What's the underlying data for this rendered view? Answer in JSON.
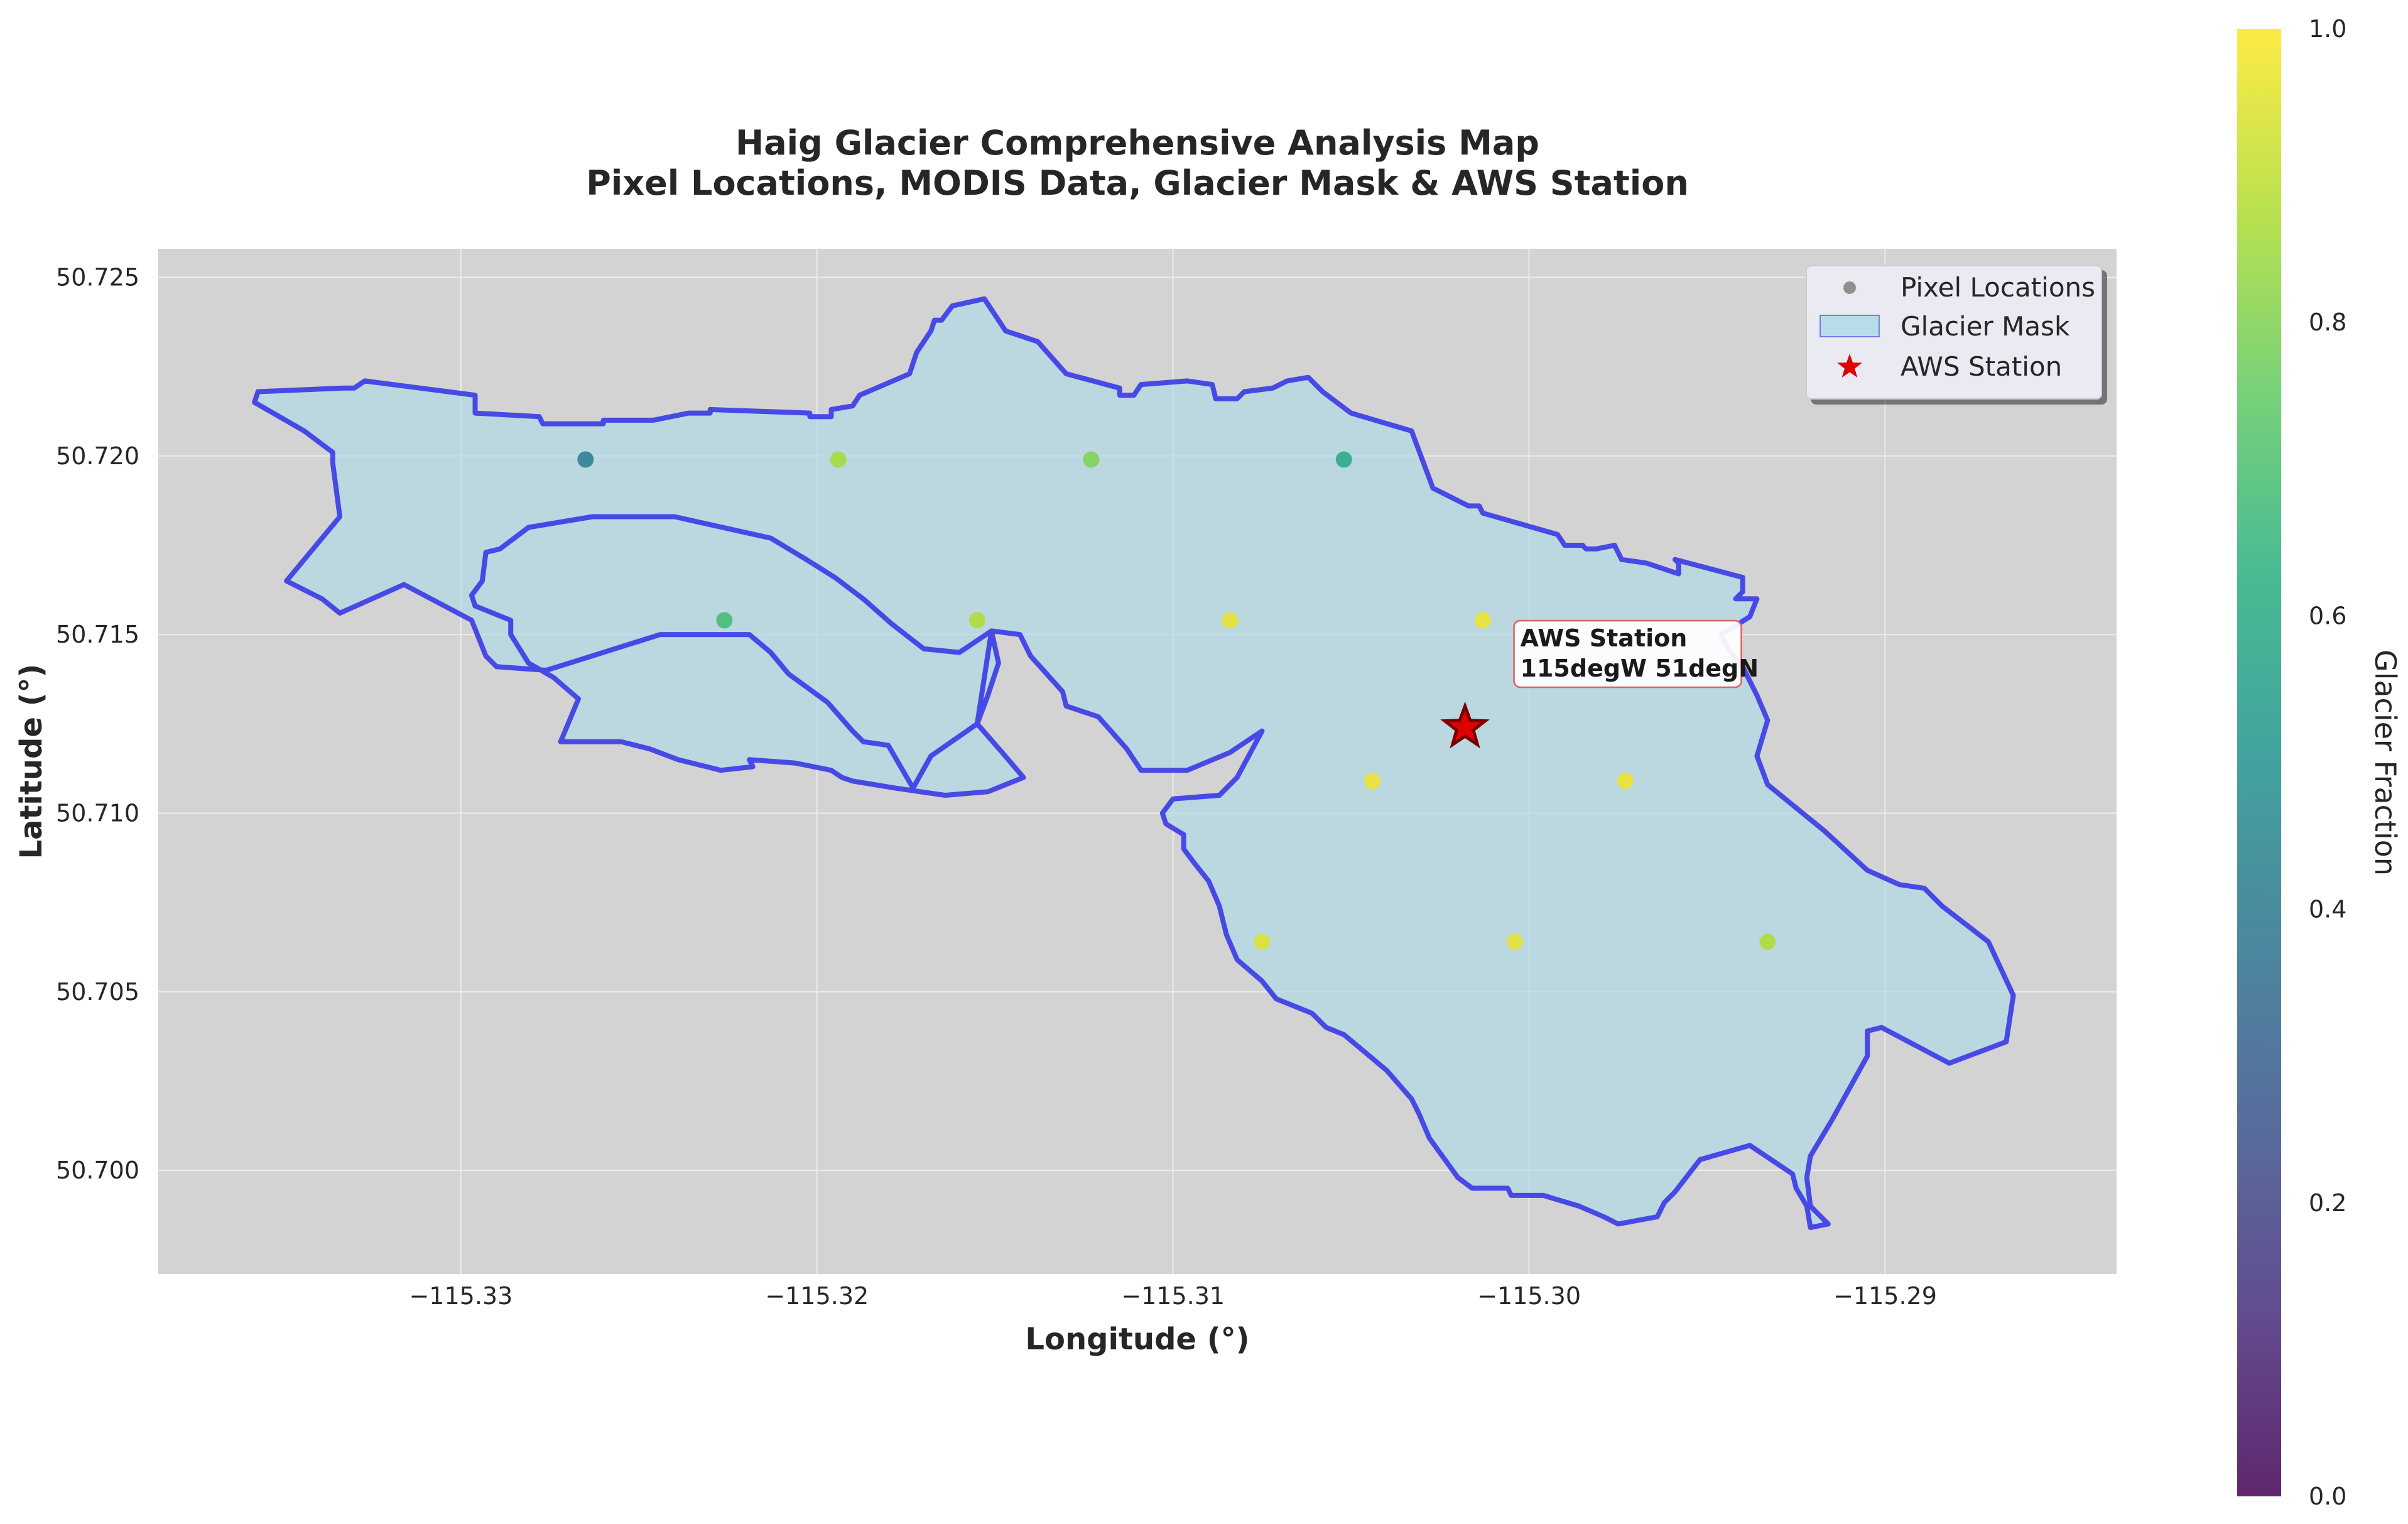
{
  "chart_data": {
    "type": "scatter",
    "title": [
      "Haig Glacier Comprehensive Analysis Map",
      "Pixel Locations, MODIS Data, Glacier Mask & AWS Station"
    ],
    "xlabel": "Longitude (°)",
    "ylabel": "Latitude (°)",
    "xlim": [
      -115.3385,
      -115.2835
    ],
    "ylim": [
      50.6971,
      50.7258
    ],
    "xticks": [
      -115.33,
      -115.32,
      -115.31,
      -115.3,
      -115.29
    ],
    "xtick_labels": [
      "−115.33",
      "−115.32",
      "−115.31",
      "−115.30",
      "−115.29"
    ],
    "yticks": [
      50.7,
      50.705,
      50.71,
      50.715,
      50.72,
      50.725
    ],
    "ytick_labels": [
      "50.700",
      "50.705",
      "50.710",
      "50.715",
      "50.720",
      "50.725"
    ],
    "grid": true,
    "legend": {
      "placement": "top-right",
      "entries": [
        "Pixel Locations",
        "Glacier Mask",
        "AWS Station"
      ]
    },
    "colorbar": {
      "label": "Glacier Fraction",
      "colormap": "viridis",
      "range": [
        0.0,
        1.0
      ],
      "ticks": [
        0.0,
        0.2,
        0.4,
        0.6,
        0.8,
        1.0
      ],
      "tick_labels": [
        "0.0",
        "0.2",
        "0.4",
        "0.6",
        "0.8",
        "1.0"
      ]
    },
    "pixels": [
      {
        "lon": -115.3265,
        "lat": 50.7199,
        "fraction": 0.42
      },
      {
        "lon": -115.3194,
        "lat": 50.7199,
        "fraction": 0.86
      },
      {
        "lon": -115.3123,
        "lat": 50.7199,
        "fraction": 0.8
      },
      {
        "lon": -115.3052,
        "lat": 50.7199,
        "fraction": 0.6
      },
      {
        "lon": -115.3226,
        "lat": 50.7154,
        "fraction": 0.68
      },
      {
        "lon": -115.3155,
        "lat": 50.7154,
        "fraction": 0.88
      },
      {
        "lon": -115.3084,
        "lat": 50.7154,
        "fraction": 0.97
      },
      {
        "lon": -115.3013,
        "lat": 50.7154,
        "fraction": 0.98
      },
      {
        "lon": -115.3044,
        "lat": 50.7109,
        "fraction": 0.98
      },
      {
        "lon": -115.2973,
        "lat": 50.7109,
        "fraction": 0.98
      },
      {
        "lon": -115.3075,
        "lat": 50.7064,
        "fraction": 0.95
      },
      {
        "lon": -115.3004,
        "lat": 50.7064,
        "fraction": 0.97
      },
      {
        "lon": -115.2933,
        "lat": 50.7064,
        "fraction": 0.88
      }
    ],
    "aws_station": {
      "lon": -115.3018,
      "lat": 50.7124
    },
    "annotation": {
      "line1": "AWS Station",
      "line2": "115degW 51degN"
    },
    "glacier_mask_outline": [
      [
        -115.3358,
        50.7215
      ],
      [
        -115.3357,
        50.7218
      ],
      [
        -115.3333,
        50.7219
      ],
      [
        -115.333,
        50.7219
      ],
      [
        -115.3327,
        50.7221
      ],
      [
        -115.3296,
        50.7217
      ],
      [
        -115.3296,
        50.7212
      ],
      [
        -115.3278,
        50.7211
      ],
      [
        -115.3277,
        50.7209
      ],
      [
        -115.326,
        50.7209
      ],
      [
        -115.326,
        50.721
      ],
      [
        -115.3246,
        50.721
      ],
      [
        -115.3236,
        50.7212
      ],
      [
        -115.323,
        50.7212
      ],
      [
        -115.323,
        50.7213
      ],
      [
        -115.3202,
        50.7212
      ],
      [
        -115.3202,
        50.7211
      ],
      [
        -115.3196,
        50.7211
      ],
      [
        -115.3196,
        50.7213
      ],
      [
        -115.319,
        50.7214
      ],
      [
        -115.3188,
        50.7217
      ],
      [
        -115.3174,
        50.7223
      ],
      [
        -115.3172,
        50.7229
      ],
      [
        -115.3168,
        50.7235
      ],
      [
        -115.3167,
        50.7238
      ],
      [
        -115.3165,
        50.7238
      ],
      [
        -115.3162,
        50.7242
      ],
      [
        -115.3153,
        50.7244
      ],
      [
        -115.3147,
        50.7235
      ],
      [
        -115.3138,
        50.7232
      ],
      [
        -115.313,
        50.7223
      ],
      [
        -115.3115,
        50.7219
      ],
      [
        -115.3115,
        50.7217
      ],
      [
        -115.3111,
        50.7217
      ],
      [
        -115.3109,
        50.722
      ],
      [
        -115.3096,
        50.7221
      ],
      [
        -115.3089,
        50.722
      ],
      [
        -115.3088,
        50.7216
      ],
      [
        -115.3082,
        50.7216
      ],
      [
        -115.308,
        50.7218
      ],
      [
        -115.3072,
        50.7219
      ],
      [
        -115.3068,
        50.7221
      ],
      [
        -115.3062,
        50.7222
      ],
      [
        -115.3061,
        50.7221
      ],
      [
        -115.3058,
        50.7218
      ],
      [
        -115.305,
        50.7212
      ],
      [
        -115.3033,
        50.7207
      ],
      [
        -115.303,
        50.7199
      ],
      [
        -115.3027,
        50.7191
      ],
      [
        -115.3017,
        50.7186
      ],
      [
        -115.3014,
        50.7186
      ],
      [
        -115.3013,
        50.7184
      ],
      [
        -115.2992,
        50.7178
      ],
      [
        -115.299,
        50.7175
      ],
      [
        -115.2985,
        50.7175
      ],
      [
        -115.2984,
        50.7174
      ],
      [
        -115.2981,
        50.7174
      ],
      [
        -115.2976,
        50.7175
      ],
      [
        -115.2974,
        50.7171
      ],
      [
        -115.2967,
        50.717
      ],
      [
        -115.2958,
        50.7167
      ],
      [
        -115.2958,
        50.717
      ],
      [
        -115.2959,
        50.7171
      ],
      [
        -115.294,
        50.7166
      ],
      [
        -115.294,
        50.7162
      ],
      [
        -115.2942,
        50.716
      ],
      [
        -115.2936,
        50.716
      ],
      [
        -115.2938,
        50.7155
      ],
      [
        -115.2946,
        50.715
      ],
      [
        -115.2944,
        50.7146
      ],
      [
        -115.294,
        50.7141
      ],
      [
        -115.2936,
        50.7133
      ],
      [
        -115.2933,
        50.7126
      ],
      [
        -115.2936,
        50.7116
      ],
      [
        -115.2933,
        50.7108
      ],
      [
        -115.2917,
        50.7095
      ],
      [
        -115.2905,
        50.7084
      ],
      [
        -115.2896,
        50.708
      ],
      [
        -115.2889,
        50.7079
      ],
      [
        -115.2884,
        50.7074
      ],
      [
        -115.2871,
        50.7064
      ],
      [
        -115.2864,
        50.7049
      ],
      [
        -115.2866,
        50.7036
      ],
      [
        -115.2882,
        50.703
      ],
      [
        -115.2901,
        50.704
      ],
      [
        -115.2905,
        50.7039
      ],
      [
        -115.2905,
        50.7032
      ],
      [
        -115.2915,
        50.7014
      ],
      [
        -115.2921,
        50.7004
      ],
      [
        -115.2922,
        50.6998
      ],
      [
        -115.2921,
        50.699
      ],
      [
        -115.2916,
        50.6985
      ],
      [
        -115.2921,
        50.6984
      ],
      [
        -115.2922,
        50.699
      ],
      [
        -115.2925,
        50.6995
      ],
      [
        -115.2926,
        50.6999
      ],
      [
        -115.2938,
        50.7007
      ],
      [
        -115.2952,
        50.7003
      ],
      [
        -115.2959,
        50.6994
      ],
      [
        -115.2962,
        50.6991
      ],
      [
        -115.2964,
        50.6987
      ],
      [
        -115.2975,
        50.6985
      ],
      [
        -115.2979,
        50.6987
      ],
      [
        -115.2986,
        50.699
      ],
      [
        -115.2996,
        50.6993
      ],
      [
        -115.3005,
        50.6993
      ],
      [
        -115.3006,
        50.6995
      ],
      [
        -115.3016,
        50.6995
      ],
      [
        -115.302,
        50.6998
      ],
      [
        -115.3028,
        50.7009
      ],
      [
        -115.3031,
        50.7016
      ],
      [
        -115.3033,
        50.702
      ],
      [
        -115.304,
        50.7028
      ],
      [
        -115.3052,
        50.7038
      ],
      [
        -115.3057,
        50.704
      ],
      [
        -115.3061,
        50.7044
      ],
      [
        -115.3071,
        50.7048
      ],
      [
        -115.3075,
        50.7053
      ],
      [
        -115.3082,
        50.7059
      ],
      [
        -115.3085,
        50.7066
      ],
      [
        -115.3087,
        50.7074
      ],
      [
        -115.309,
        50.7081
      ],
      [
        -115.3094,
        50.7086
      ],
      [
        -115.3097,
        50.709
      ],
      [
        -115.3097,
        50.7094
      ],
      [
        -115.3102,
        50.7097
      ],
      [
        -115.3103,
        50.71
      ],
      [
        -115.31,
        50.7104
      ],
      [
        -115.3087,
        50.7105
      ],
      [
        -115.3082,
        50.711
      ],
      [
        -115.3075,
        50.7123
      ],
      [
        -115.3084,
        50.7117
      ],
      [
        -115.3096,
        50.7112
      ],
      [
        -115.3109,
        50.7112
      ],
      [
        -115.3113,
        50.7118
      ],
      [
        -115.3121,
        50.7127
      ],
      [
        -115.313,
        50.713
      ],
      [
        -115.3131,
        50.7134
      ],
      [
        -115.314,
        50.7144
      ],
      [
        -115.3143,
        50.715
      ],
      [
        -115.3151,
        50.7151
      ],
      [
        -115.3149,
        50.7142
      ],
      [
        -115.3152,
        50.7133
      ],
      [
        -115.3155,
        50.7125
      ],
      [
        -115.3148,
        50.7117
      ],
      [
        -115.3142,
        50.711
      ],
      [
        -115.3152,
        50.7106
      ],
      [
        -115.3164,
        50.7105
      ],
      [
        -115.3178,
        50.7107
      ],
      [
        -115.319,
        50.7109
      ],
      [
        -115.3193,
        50.711
      ],
      [
        -115.3196,
        50.7112
      ],
      [
        -115.3206,
        50.7114
      ],
      [
        -115.3219,
        50.7115
      ],
      [
        -115.3218,
        50.7113
      ],
      [
        -115.3227,
        50.7112
      ],
      [
        -115.3239,
        50.7115
      ],
      [
        -115.3247,
        50.7118
      ],
      [
        -115.3255,
        50.712
      ],
      [
        -115.3272,
        50.712
      ],
      [
        -115.3267,
        50.7132
      ],
      [
        -115.3274,
        50.7138
      ],
      [
        -115.3281,
        50.7142
      ],
      [
        -115.3286,
        50.715
      ],
      [
        -115.3286,
        50.7154
      ],
      [
        -115.3296,
        50.7158
      ],
      [
        -115.3297,
        50.7161
      ],
      [
        -115.3294,
        50.7165
      ],
      [
        -115.3293,
        50.7173
      ],
      [
        -115.3289,
        50.7174
      ],
      [
        -115.3281,
        50.718
      ],
      [
        -115.3263,
        50.7183
      ],
      [
        -115.324,
        50.7183
      ],
      [
        -115.3213,
        50.7177
      ],
      [
        -115.3203,
        50.7171
      ],
      [
        -115.3195,
        50.7166
      ],
      [
        -115.3187,
        50.716
      ],
      [
        -115.3179,
        50.7153
      ],
      [
        -115.317,
        50.7146
      ],
      [
        -115.316,
        50.7145
      ],
      [
        -115.3151,
        50.7151
      ],
      [
        -115.3155,
        50.7125
      ],
      [
        -115.3168,
        50.7116
      ],
      [
        -115.3173,
        50.7107
      ],
      [
        -115.318,
        50.7119
      ],
      [
        -115.3187,
        50.712
      ],
      [
        -115.319,
        50.7123
      ],
      [
        -115.3197,
        50.7131
      ],
      [
        -115.3208,
        50.7139
      ],
      [
        -115.3213,
        50.7145
      ],
      [
        -115.3219,
        50.715
      ],
      [
        -115.3244,
        50.715
      ],
      [
        -115.3276,
        50.714
      ],
      [
        -115.329,
        50.7141
      ],
      [
        -115.3293,
        50.7144
      ],
      [
        -115.3297,
        50.7154
      ],
      [
        -115.3316,
        50.7164
      ],
      [
        -115.3334,
        50.7156
      ],
      [
        -115.3339,
        50.716
      ],
      [
        -115.3349,
        50.7165
      ],
      [
        -115.3334,
        50.7183
      ],
      [
        -115.3336,
        50.7198
      ],
      [
        -115.3336,
        50.7201
      ],
      [
        -115.3344,
        50.7207
      ],
      [
        -115.3358,
        50.7215
      ]
    ]
  }
}
